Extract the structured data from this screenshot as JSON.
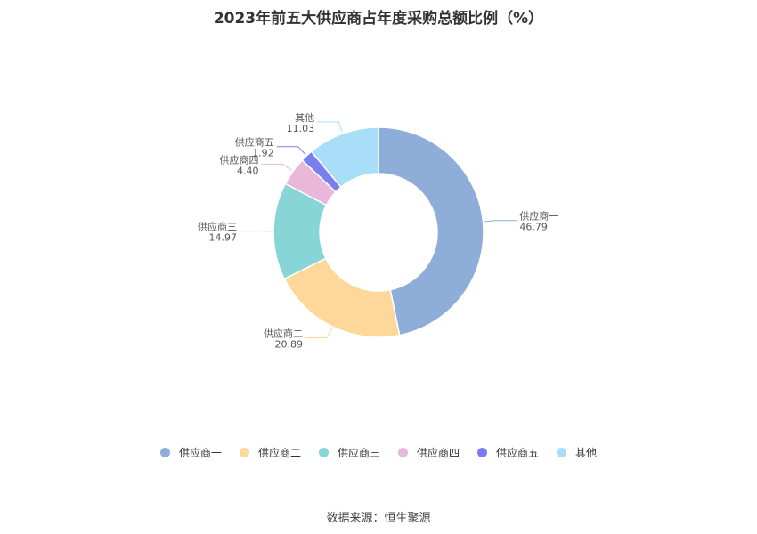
{
  "title": "2023年前五大供应商占年度采购总额比例（%）",
  "source": "数据来源：恒生聚源",
  "chart_data": {
    "type": "pie",
    "title": "2023年前五大供应商占年度采购总额比例（%）",
    "legend": "bottom",
    "categories": [
      "供应商一",
      "供应商二",
      "供应商三",
      "供应商四",
      "供应商五",
      "其他"
    ],
    "values": [
      46.79,
      20.89,
      14.97,
      4.4,
      1.92,
      11.03
    ],
    "labels": [
      "46.79",
      "20.89",
      "14.97",
      "4.40",
      "1.92",
      "11.03"
    ],
    "colors": [
      "#8fadd9",
      "#fdd89a",
      "#87d5d6",
      "#e9b8d9",
      "#7b7ef0",
      "#a9def8"
    ]
  }
}
